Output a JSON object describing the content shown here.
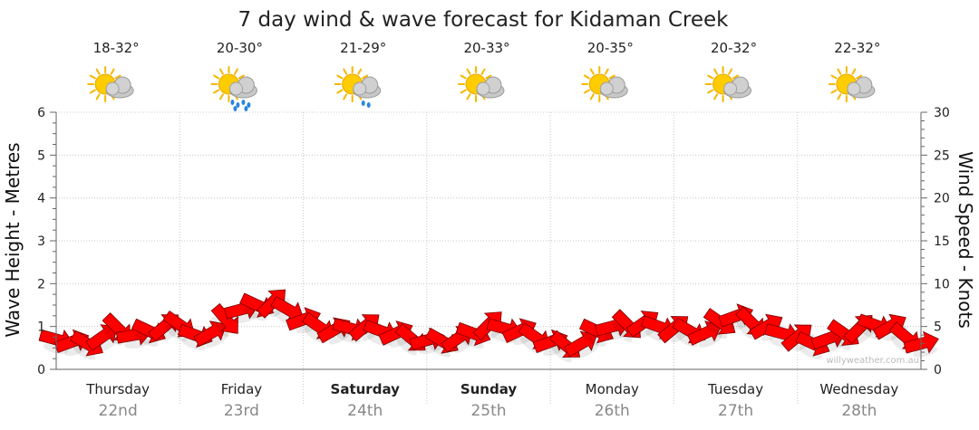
{
  "chart_data": {
    "type": "line",
    "title": "7 day wind & wave forecast for Kidaman Creek",
    "ylabel_left": "Wave Height - Metres",
    "ylabel_right": "Wind Speed - Knots",
    "ylim_left": [
      0,
      6
    ],
    "ylim_right": [
      0,
      30
    ],
    "yticks_left": [
      "0",
      "1",
      "2",
      "3",
      "4",
      "5",
      "6"
    ],
    "yticks_right": [
      "0",
      "5",
      "10",
      "15",
      "20",
      "25",
      "30"
    ],
    "grid": true,
    "days": [
      {
        "day": "Thursday",
        "date": "22nd",
        "temp": "18-32°",
        "icon": "partly-cloudy-icon",
        "bold": false
      },
      {
        "day": "Friday",
        "date": "23rd",
        "temp": "20-30°",
        "icon": "shower-icon",
        "bold": false
      },
      {
        "day": "Saturday",
        "date": "24th",
        "temp": "21-29°",
        "icon": "light-shower-icon",
        "bold": true
      },
      {
        "day": "Sunday",
        "date": "25th",
        "temp": "20-33°",
        "icon": "partly-cloudy-icon",
        "bold": true
      },
      {
        "day": "Monday",
        "date": "26th",
        "temp": "20-35°",
        "icon": "partly-cloudy-icon",
        "bold": false
      },
      {
        "day": "Tuesday",
        "date": "27th",
        "temp": "20-32°",
        "icon": "partly-cloudy-icon",
        "bold": false
      },
      {
        "day": "Wednesday",
        "date": "28th",
        "temp": "22-32°",
        "icon": "partly-cloudy-icon",
        "bold": false
      }
    ],
    "series": [
      {
        "kind": "wind",
        "x": [
          0,
          0.125,
          0.25,
          0.375,
          0.5,
          0.625,
          0.75,
          0.875,
          1,
          1.125,
          1.25,
          1.375,
          1.5,
          1.625,
          1.75,
          1.875,
          2,
          2.125,
          2.25,
          2.375,
          2.5,
          2.625,
          2.75,
          2.875,
          3,
          3.125,
          3.25,
          3.375,
          3.5,
          3.625,
          3.75,
          3.875,
          4,
          4.125,
          4.25,
          4.375,
          4.5,
          4.625,
          4.75,
          4.875,
          5,
          5.125,
          5.25,
          5.375,
          5.5,
          5.625,
          5.75,
          5.875,
          6,
          6.125,
          6.25,
          6.375,
          6.5,
          6.625,
          6.75,
          6.875,
          7
        ],
        "values": [
          3.5,
          3.2,
          3.0,
          3.8,
          4.8,
          4.0,
          4.5,
          5.0,
          5.2,
          4.0,
          4.2,
          5.8,
          7.0,
          7.5,
          7.8,
          7.0,
          5.8,
          5.0,
          4.6,
          4.8,
          5.0,
          4.5,
          4.2,
          3.6,
          3.4,
          3.3,
          3.6,
          4.2,
          5.2,
          4.8,
          4.5,
          3.8,
          3.2,
          2.8,
          3.0,
          4.5,
          5.0,
          5.2,
          5.4,
          5.0,
          4.8,
          4.5,
          4.2,
          5.5,
          6.2,
          5.5,
          5.0,
          4.2,
          3.8,
          3.0,
          3.6,
          4.2,
          4.8,
          5.2,
          5.0,
          3.8,
          3.0
        ]
      }
    ]
  },
  "watermark": "willyweather.com.au"
}
